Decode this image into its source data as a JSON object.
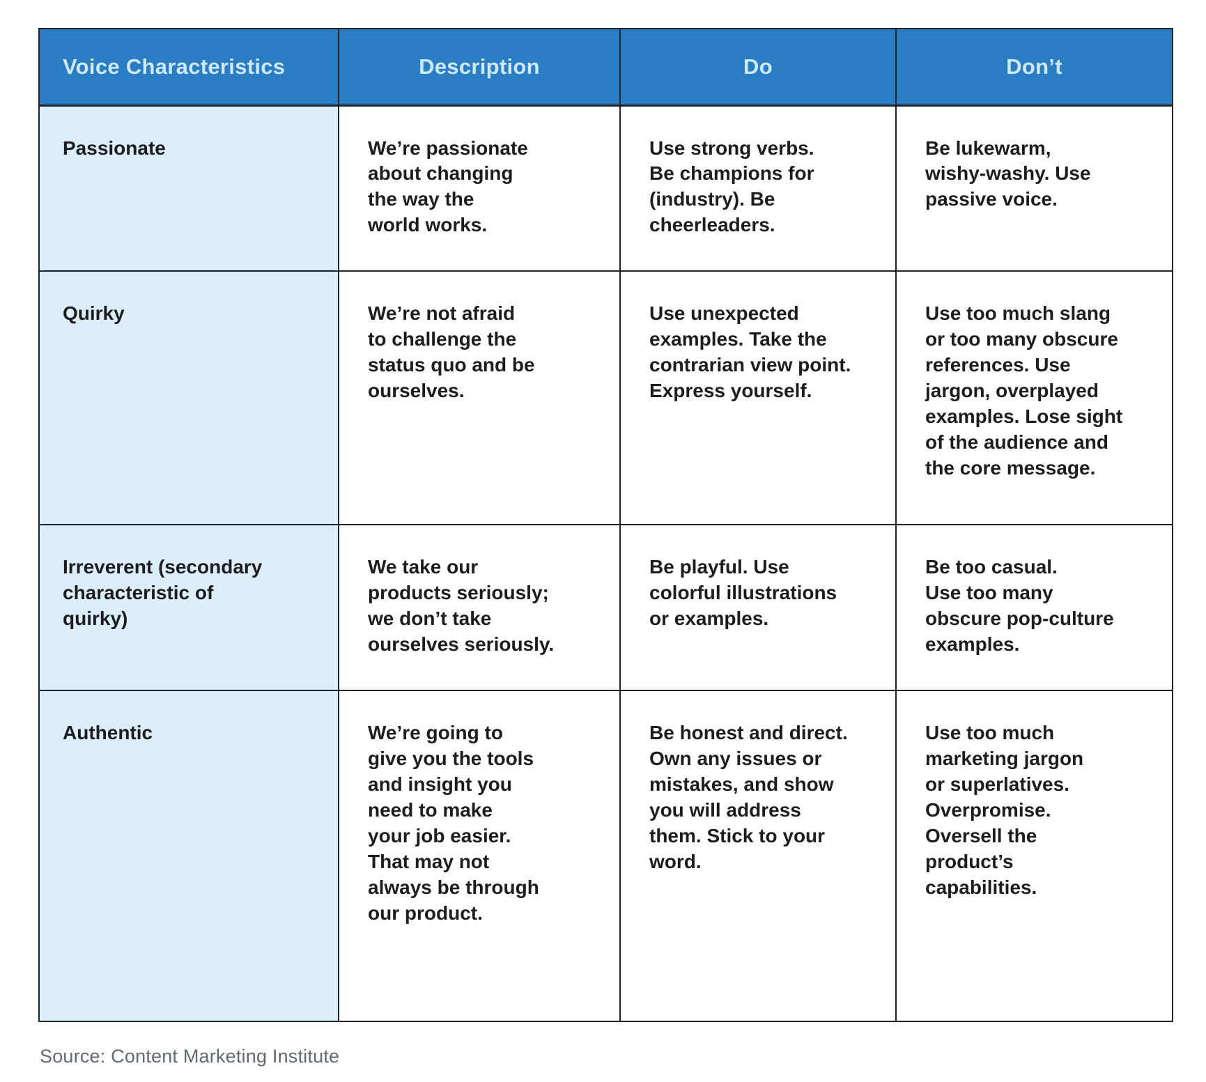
{
  "colors": {
    "header_bg": "#2a7dc3",
    "header_text": "#cde9fa",
    "first_column_bg": "#dceefa",
    "border": "#1d242e",
    "body_text": "#1d1d1f",
    "source_text": "#5d6b74"
  },
  "table": {
    "headers": [
      "Voice Characteristics",
      "Description",
      "Do",
      "Don’t"
    ],
    "rows": [
      {
        "characteristic": "Passionate",
        "description": "We’re passionate\nabout changing\nthe way the\nworld works.",
        "do": "Use strong verbs.\nBe champions for\n(industry). Be\ncheerleaders.",
        "dont": "Be lukewarm,\nwishy-washy. Use\npassive voice."
      },
      {
        "characteristic": "Quirky",
        "description": "We’re not afraid\nto challenge the\nstatus quo and be\nourselves.",
        "do": "Use unexpected\nexamples. Take the\ncontrarian view point.\nExpress yourself.",
        "dont": "Use too much slang\nor too many obscure\nreferences. Use\njargon, overplayed\nexamples. Lose sight\nof the audience and\nthe core message."
      },
      {
        "characteristic": "Irreverent (secondary\ncharacteristic of\nquirky)",
        "description": "We take our\nproducts seriously;\nwe don’t take\nourselves seriously.",
        "do": "Be playful. Use\ncolorful illustrations\nor examples.",
        "dont": "Be too casual.\nUse too many\nobscure pop-culture\nexamples."
      },
      {
        "characteristic": "Authentic",
        "description": "We’re going to\ngive you the tools\nand insight you\nneed to make\nyour job easier.\nThat may not\nalways be through\nour product.",
        "do": "Be honest and direct.\nOwn any issues or\nmistakes, and show\nyou will address\nthem. Stick to your\nword.",
        "dont": "Use too much\nmarketing jargon\nor superlatives.\nOverpromise.\nOversell the\nproduct’s\ncapabilities."
      }
    ]
  },
  "source": {
    "label": "Source: Content Marketing Institute"
  }
}
